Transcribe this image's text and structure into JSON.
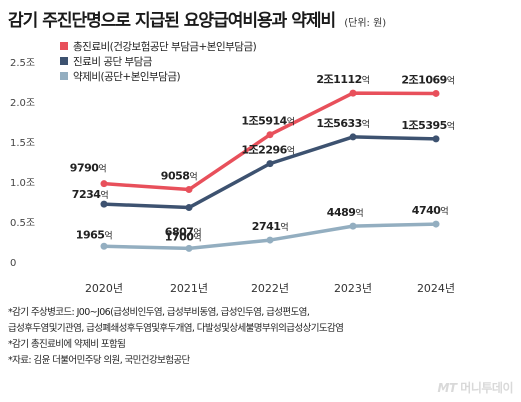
{
  "header": {
    "title": "감기 주진단명으로 지급된 요양급여비용과 약제비",
    "unit": "(단위: 원)"
  },
  "chart_data": {
    "type": "line",
    "x": [
      "2020년",
      "2021년",
      "2022년",
      "2023년",
      "2024년"
    ],
    "ylim": [
      0,
      25000
    ],
    "yticks": [
      {
        "value": 0,
        "label": "0"
      },
      {
        "value": 5000,
        "label": "0.5조"
      },
      {
        "value": 10000,
        "label": "1.0조"
      },
      {
        "value": 15000,
        "label": "1.5조"
      },
      {
        "value": 20000,
        "label": "2.0조"
      },
      {
        "value": 25000,
        "label": "2.5조"
      }
    ],
    "grid": false,
    "legend_position": "top-left",
    "series": [
      {
        "name": "총진료비(건강보험공단 부담금+본인부담금)",
        "color": "#e8505b",
        "values": [
          9790,
          9058,
          15914,
          21112,
          21069
        ],
        "labels": [
          {
            "main": "9790",
            "unit": "억"
          },
          {
            "main": "9058",
            "unit": "억"
          },
          {
            "main": "1조5914",
            "unit": "억"
          },
          {
            "main": "2조1112",
            "unit": "억"
          },
          {
            "main": "2조1069",
            "unit": "억"
          }
        ]
      },
      {
        "name": "진료비 공단 부담금",
        "color": "#3d5270",
        "values": [
          7234,
          6807,
          12296,
          15633,
          15395
        ],
        "labels": [
          {
            "main": "7234",
            "unit": "억"
          },
          {
            "main": "6807",
            "unit": "억"
          },
          {
            "main": "1조2296",
            "unit": "억"
          },
          {
            "main": "1조5633",
            "unit": "억"
          },
          {
            "main": "1조5395",
            "unit": "억"
          }
        ]
      },
      {
        "name": "약제비(공단+본인부담금)",
        "color": "#93aec0",
        "values": [
          1965,
          1700,
          2741,
          4489,
          4740
        ],
        "labels": [
          {
            "main": "1965",
            "unit": "억"
          },
          {
            "main": "1700",
            "unit": "억"
          },
          {
            "main": "2741",
            "unit": "억"
          },
          {
            "main": "4489",
            "unit": "억"
          },
          {
            "main": "4740",
            "unit": "억"
          }
        ]
      }
    ]
  },
  "notes": [
    "*감기 주상병코드: J00~J06(급성비인두염, 급성부비동염, 급성인두염, 급성편도염,",
    "급성후두염및기관염, 급성폐쇄성후두염및후두개염, 다발성및상세불명부위의급성상기도감염",
    "*감기 총진료비에 약제비 포함됨",
    "*자료: 김윤 더불어민주당 의원, 국민건강보험공단"
  ],
  "logo": {
    "mark": "MT",
    "text": "머니투데이"
  }
}
